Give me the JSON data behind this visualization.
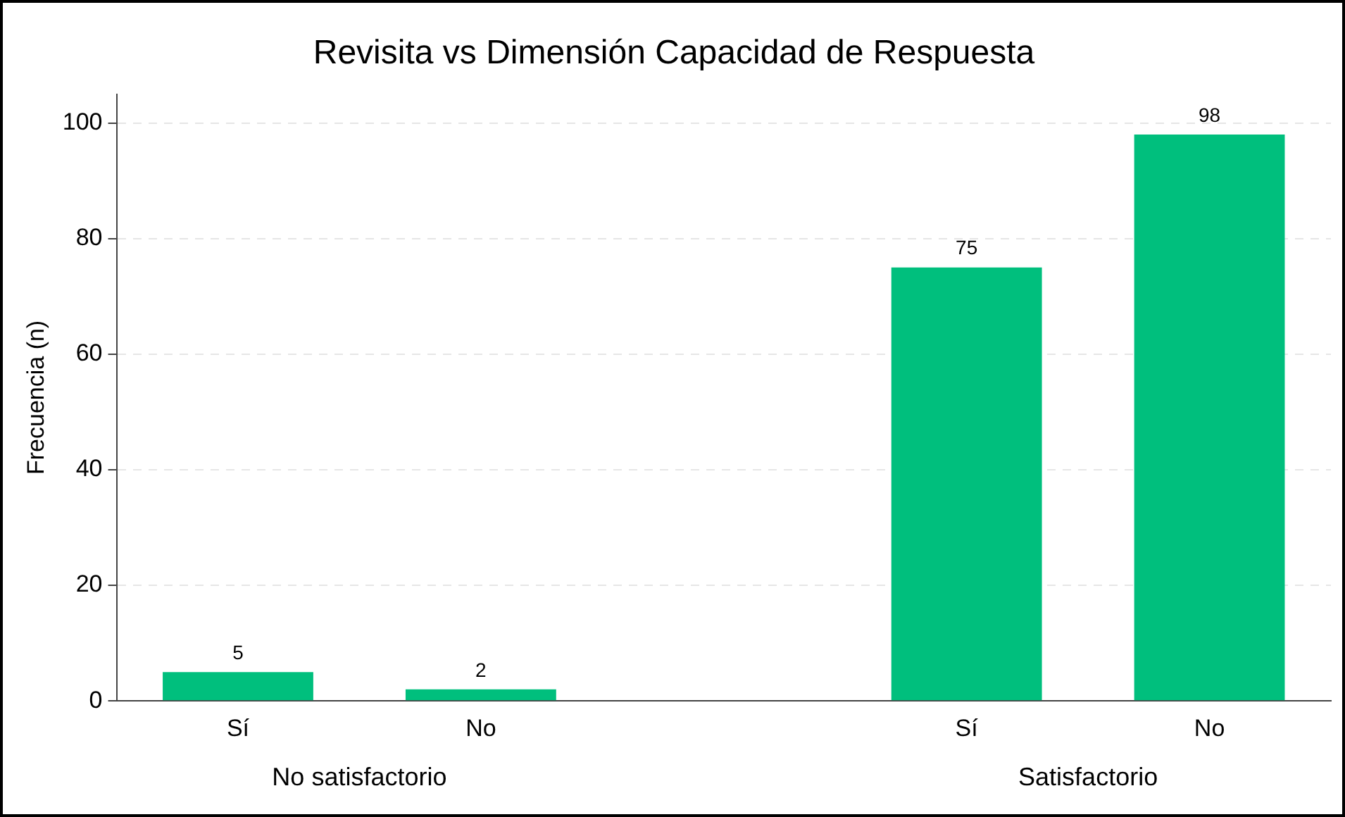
{
  "chart_data": {
    "type": "bar",
    "title": "Revisita vs Dimensión Capacidad de Respuesta",
    "ylabel": "Frecuencia (n)",
    "categories": [
      "Sí",
      "No",
      null,
      "Sí",
      "No"
    ],
    "values": [
      5,
      2,
      null,
      75,
      98
    ],
    "color": "#00bf7d",
    "ylim": [
      0,
      105
    ],
    "yticks": [
      0,
      20,
      40,
      60,
      80,
      100
    ],
    "grid": "y",
    "legend": false,
    "data_labels": true,
    "annotations": [
      "No satisfactorio",
      "Satisfactorio"
    ]
  }
}
